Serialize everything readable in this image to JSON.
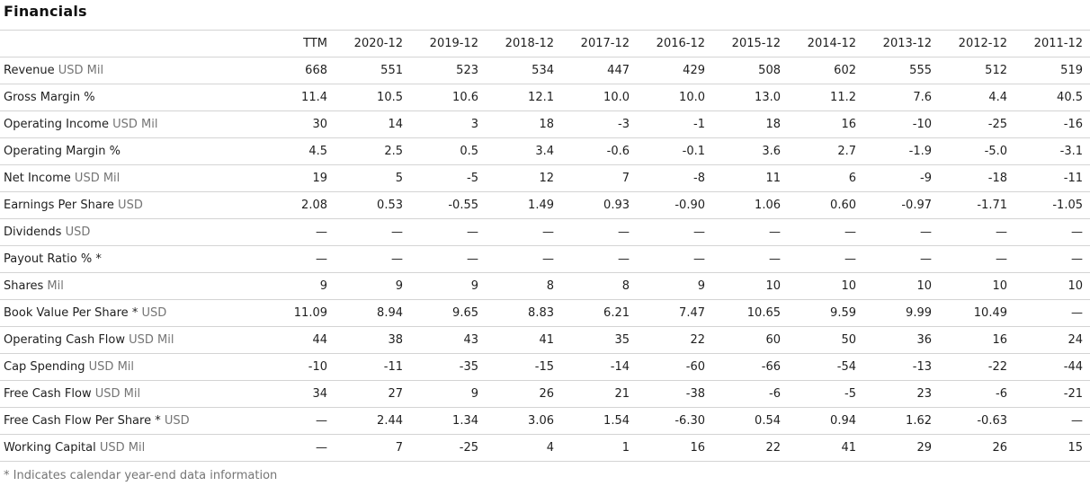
{
  "title": "Financials",
  "footnote": "* Indicates calendar year-end data information",
  "colors": {
    "text": "#1f1f1f",
    "muted_text": "#757575",
    "row_border": "#d4d4d4",
    "background": "#ffffff"
  },
  "table": {
    "columns": [
      "TTM",
      "2020-12",
      "2019-12",
      "2018-12",
      "2017-12",
      "2016-12",
      "2015-12",
      "2014-12",
      "2013-12",
      "2012-12",
      "2011-12"
    ],
    "rows": [
      {
        "label": "Revenue",
        "unit": "USD Mil",
        "values": [
          "668",
          "551",
          "523",
          "534",
          "447",
          "429",
          "508",
          "602",
          "555",
          "512",
          "519"
        ]
      },
      {
        "label": "Gross Margin %",
        "unit": "",
        "values": [
          "11.4",
          "10.5",
          "10.6",
          "12.1",
          "10.0",
          "10.0",
          "13.0",
          "11.2",
          "7.6",
          "4.4",
          "40.5"
        ]
      },
      {
        "label": "Operating Income",
        "unit": "USD Mil",
        "values": [
          "30",
          "14",
          "3",
          "18",
          "-3",
          "-1",
          "18",
          "16",
          "-10",
          "-25",
          "-16"
        ]
      },
      {
        "label": "Operating Margin %",
        "unit": "",
        "values": [
          "4.5",
          "2.5",
          "0.5",
          "3.4",
          "-0.6",
          "-0.1",
          "3.6",
          "2.7",
          "-1.9",
          "-5.0",
          "-3.1"
        ]
      },
      {
        "label": "Net Income",
        "unit": "USD Mil",
        "values": [
          "19",
          "5",
          "-5",
          "12",
          "7",
          "-8",
          "11",
          "6",
          "-9",
          "-18",
          "-11"
        ]
      },
      {
        "label": "Earnings Per Share",
        "unit": "USD",
        "values": [
          "2.08",
          "0.53",
          "-0.55",
          "1.49",
          "0.93",
          "-0.90",
          "1.06",
          "0.60",
          "-0.97",
          "-1.71",
          "-1.05"
        ]
      },
      {
        "label": "Dividends",
        "unit": "USD",
        "values": [
          "—",
          "—",
          "—",
          "—",
          "—",
          "—",
          "—",
          "—",
          "—",
          "—",
          "—"
        ]
      },
      {
        "label": "Payout Ratio % *",
        "unit": "",
        "values": [
          "—",
          "—",
          "—",
          "—",
          "—",
          "—",
          "—",
          "—",
          "—",
          "—",
          "—"
        ]
      },
      {
        "label": "Shares",
        "unit": "Mil",
        "values": [
          "9",
          "9",
          "9",
          "8",
          "8",
          "9",
          "10",
          "10",
          "10",
          "10",
          "10"
        ]
      },
      {
        "label": "Book Value Per Share *",
        "unit": "USD",
        "values": [
          "11.09",
          "8.94",
          "9.65",
          "8.83",
          "6.21",
          "7.47",
          "10.65",
          "9.59",
          "9.99",
          "10.49",
          "—"
        ]
      },
      {
        "label": "Operating Cash Flow",
        "unit": "USD Mil",
        "values": [
          "44",
          "38",
          "43",
          "41",
          "35",
          "22",
          "60",
          "50",
          "36",
          "16",
          "24"
        ]
      },
      {
        "label": "Cap Spending",
        "unit": "USD Mil",
        "values": [
          "-10",
          "-11",
          "-35",
          "-15",
          "-14",
          "-60",
          "-66",
          "-54",
          "-13",
          "-22",
          "-44"
        ]
      },
      {
        "label": "Free Cash Flow",
        "unit": "USD Mil",
        "values": [
          "34",
          "27",
          "9",
          "26",
          "21",
          "-38",
          "-6",
          "-5",
          "23",
          "-6",
          "-21"
        ]
      },
      {
        "label": "Free Cash Flow Per Share *",
        "unit": "USD",
        "values": [
          "—",
          "2.44",
          "1.34",
          "3.06",
          "1.54",
          "-6.30",
          "0.54",
          "0.94",
          "1.62",
          "-0.63",
          "—"
        ]
      },
      {
        "label": "Working Capital",
        "unit": "USD Mil",
        "values": [
          "—",
          "7",
          "-25",
          "4",
          "1",
          "16",
          "22",
          "41",
          "29",
          "26",
          "15"
        ]
      }
    ]
  }
}
